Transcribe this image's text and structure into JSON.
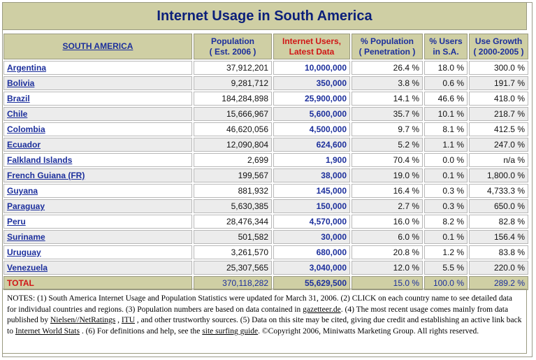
{
  "title": "Internet Usage in South America",
  "headers": {
    "region": "SOUTH AMERICA",
    "population": [
      "Population",
      "( Est. 2006 )"
    ],
    "users": [
      "Internet Users,",
      "Latest Data"
    ],
    "penetration": [
      "% Population",
      "( Penetration )"
    ],
    "share": [
      "% Users",
      "in S.A."
    ],
    "growth": [
      "Use Growth",
      "( 2000-2005 )"
    ]
  },
  "rows": [
    {
      "name": "Argentina",
      "population": "37,912,201",
      "users": "10,000,000",
      "penetration": "26.4 %",
      "share": "18.0 %",
      "growth": "300.0 %"
    },
    {
      "name": "Bolivia",
      "population": "9,281,712",
      "users": "350,000",
      "penetration": "3.8 %",
      "share": "0.6 %",
      "growth": "191.7 %"
    },
    {
      "name": "Brazil",
      "population": "184,284,898",
      "users": "25,900,000",
      "penetration": "14.1 %",
      "share": "46.6 %",
      "growth": "418.0 %"
    },
    {
      "name": "Chile",
      "population": "15,666,967",
      "users": "5,600,000",
      "penetration": "35.7 %",
      "share": "10.1 %",
      "growth": "218.7 %"
    },
    {
      "name": "Colombia",
      "population": "46,620,056",
      "users": "4,500,000",
      "penetration": "9.7 %",
      "share": "8.1 %",
      "growth": "412.5 %"
    },
    {
      "name": "Ecuador",
      "population": "12,090,804",
      "users": "624,600",
      "penetration": "5.2 %",
      "share": "1.1 %",
      "growth": "247.0 %"
    },
    {
      "name": "Falkland Islands",
      "population": "2,699",
      "users": "1,900",
      "penetration": "70.4 %",
      "share": "0.0 %",
      "growth": "n/a %"
    },
    {
      "name": "French Guiana (FR)",
      "population": "199,567",
      "users": "38,000",
      "penetration": "19.0 %",
      "share": "0.1 %",
      "growth": "1,800.0 %"
    },
    {
      "name": "Guyana",
      "population": "881,932",
      "users": "145,000",
      "penetration": "16.4 %",
      "share": "0.3 %",
      "growth": "4,733.3 %"
    },
    {
      "name": "Paraguay",
      "population": "5,630,385",
      "users": "150,000",
      "penetration": "2.7 %",
      "share": "0.3 %",
      "growth": "650.0 %"
    },
    {
      "name": "Peru",
      "population": "28,476,344",
      "users": "4,570,000",
      "penetration": "16.0 %",
      "share": "8.2 %",
      "growth": "82.8 %"
    },
    {
      "name": "Suriname",
      "population": "501,582",
      "users": "30,000",
      "penetration": "6.0 %",
      "share": "0.1 %",
      "growth": "156.4 %"
    },
    {
      "name": "Uruguay",
      "population": "3,261,570",
      "users": "680,000",
      "penetration": "20.8 %",
      "share": "1.2 %",
      "growth": "83.8 %"
    },
    {
      "name": "Venezuela",
      "population": "25,307,565",
      "users": "3,040,000",
      "penetration": "12.0 %",
      "share": "5.5 %",
      "growth": "220.0 %"
    }
  ],
  "total": {
    "name": "TOTAL",
    "population": "370,118,282",
    "users": "55,629,500",
    "penetration": "15.0 %",
    "share": "100.0 %",
    "growth": "289.2 %"
  },
  "notes": {
    "t1": "NOTES: (1) South America Internet Usage and Population Statistics were updated for March 31, 2006. (2) CLICK on each country name to see detailed data for individual countries and regions. (3) Population numbers are based on data contained in ",
    "l1": "gazetteer.de",
    "t2": ". (4) The most recent usage comes mainly from data published by ",
    "l2": "Nielsen//NetRatings",
    "t3": " , ",
    "l3": "ITU",
    "t4": " , and other trustworthy sources. (5) Data on this site may be cited, giving due credit and establishing an active link back to ",
    "l4": "Internet World Stats",
    "t5": " . (6) For definitions and help, see the ",
    "l5": "site surfing guide",
    "t6": ". ©Copyright 2006, Miniwatts Marketing Group. All rights reserved."
  }
}
